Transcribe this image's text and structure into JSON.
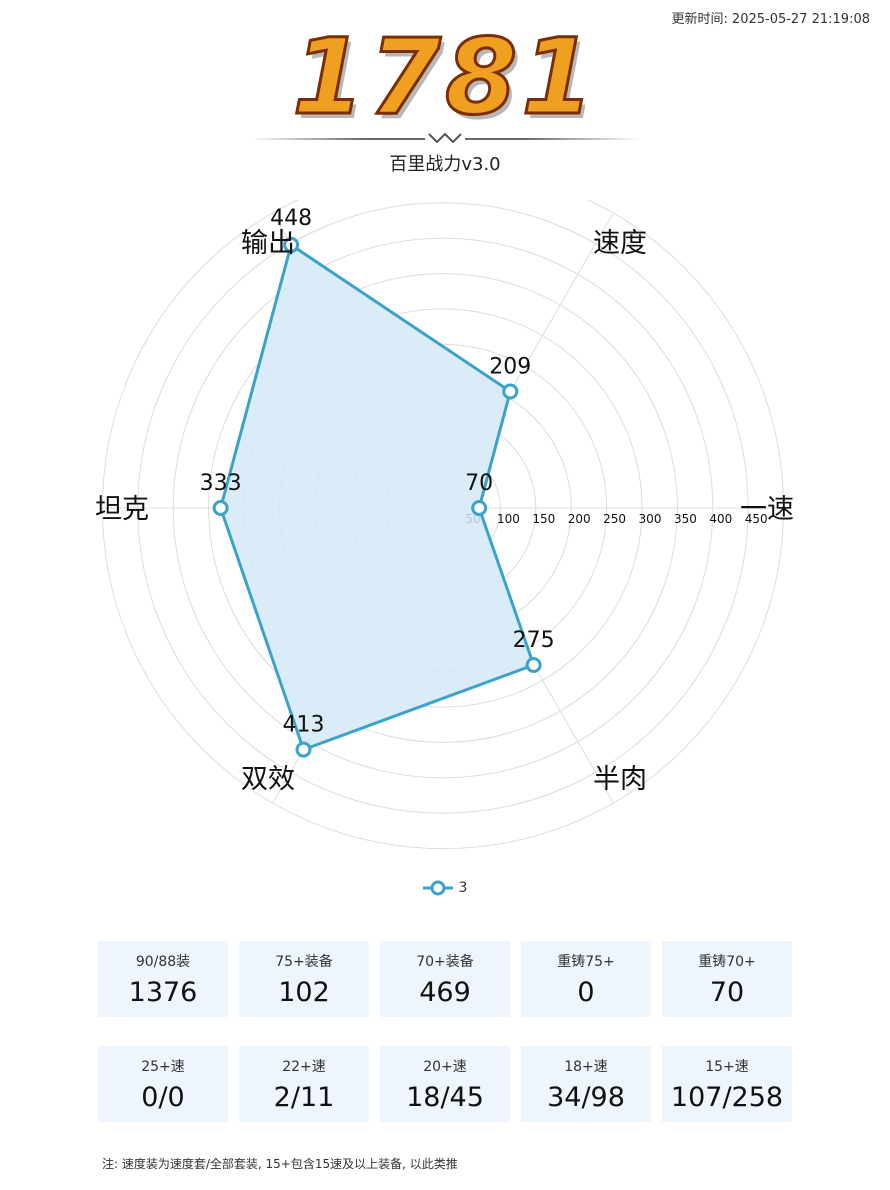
{
  "header": {
    "updated_label": "更新时间:",
    "updated_time": "2025-05-27 21:19:08",
    "score": "1781",
    "subtitle": "百里战力v3.0"
  },
  "chart_data": {
    "type": "radar",
    "axes": [
      "输出",
      "速度",
      "一速",
      "半肉",
      "双效",
      "坦克"
    ],
    "radial_ticks": [
      50,
      100,
      150,
      200,
      250,
      300,
      350,
      400,
      450
    ],
    "series": [
      {
        "name": "3",
        "values": [
          448,
          209,
          70,
          275,
          413,
          333
        ],
        "color": "#3ba2c9",
        "fill": "#d3e9f6"
      }
    ],
    "grid": true,
    "legend": "bottom"
  },
  "stats": {
    "row1": [
      {
        "label": "90/88装",
        "value": "1376"
      },
      {
        "label": "75+装备",
        "value": "102"
      },
      {
        "label": "70+装备",
        "value": "469"
      },
      {
        "label": "重铸75+",
        "value": "0"
      },
      {
        "label": "重铸70+",
        "value": "70"
      }
    ],
    "row2": [
      {
        "label": "25+速",
        "value": "0/0"
      },
      {
        "label": "22+速",
        "value": "2/11"
      },
      {
        "label": "20+速",
        "value": "18/45"
      },
      {
        "label": "18+速",
        "value": "34/98"
      },
      {
        "label": "15+速",
        "value": "107/258"
      }
    ]
  },
  "footer": {
    "note": "注: 速度装为速度套/全部套装, 15+包含15速及以上装备, 以此类推"
  }
}
